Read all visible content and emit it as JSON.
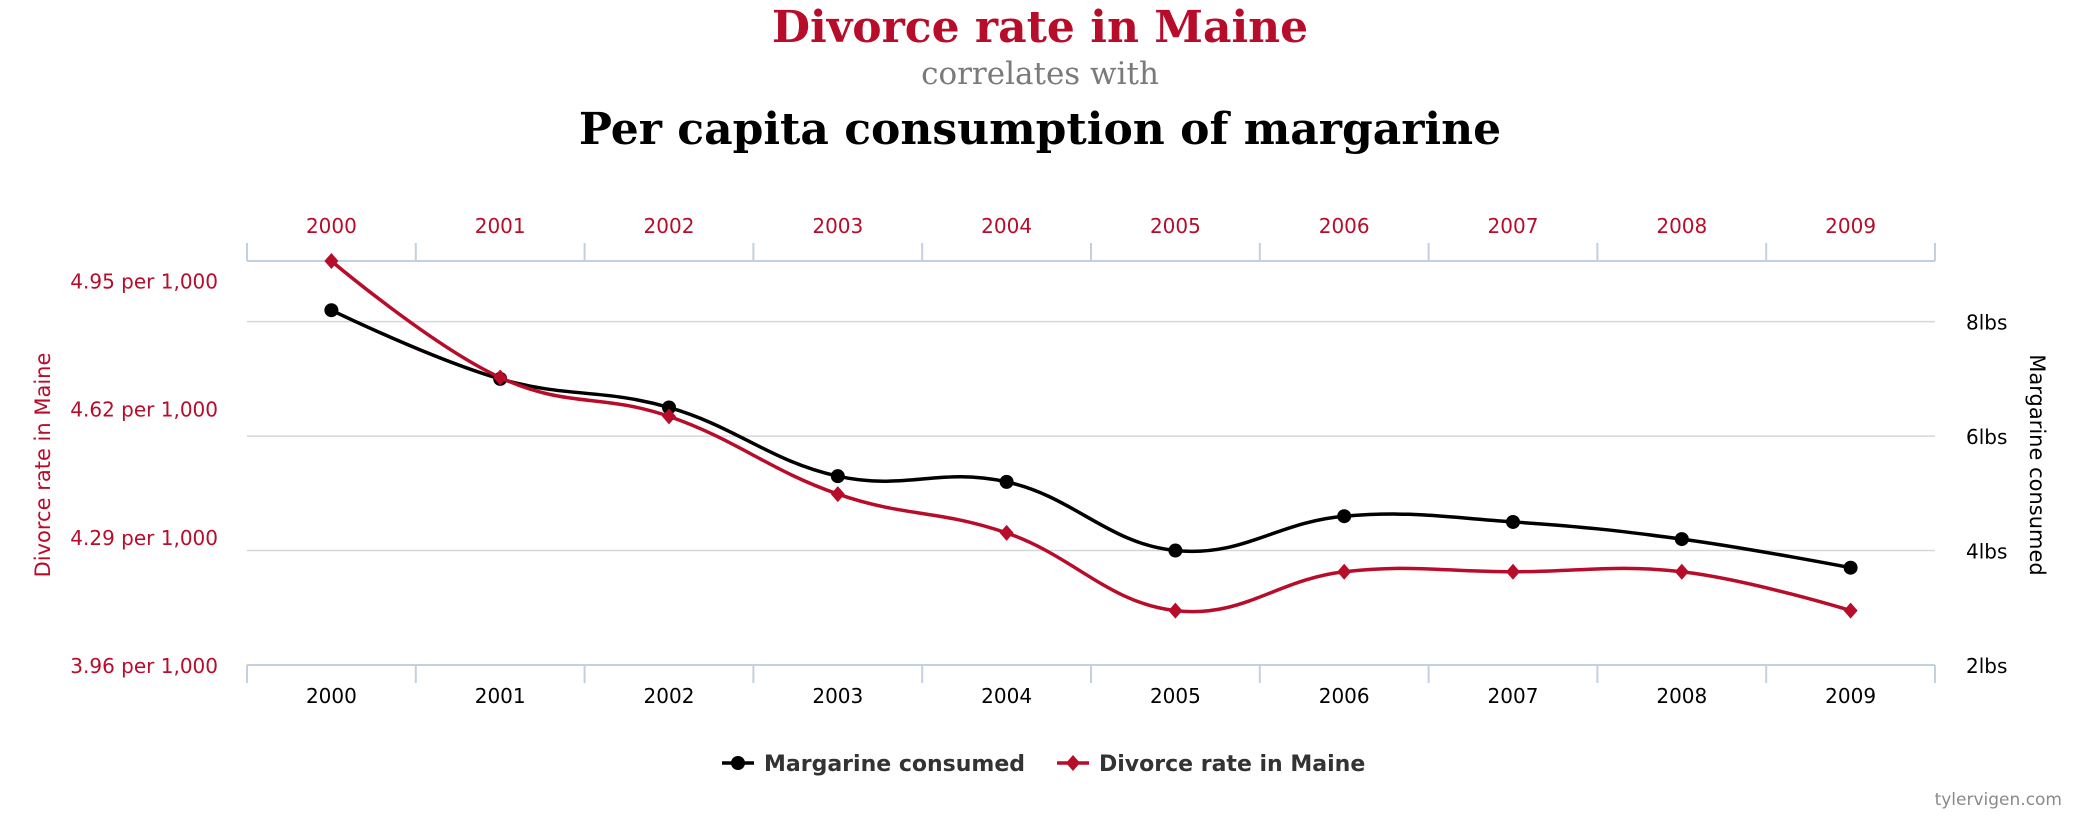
{
  "title": {
    "line1": "Divorce rate in Maine",
    "line2": "correlates with",
    "line3": "Per capita consumption of margarine"
  },
  "watermark": "tylervigen.com",
  "colors": {
    "divorce": "#b80c2b",
    "margarine": "#000000",
    "grid": "#d3d7dc",
    "axis": "#c2d0e0"
  },
  "chart_data": {
    "type": "line",
    "smoothing": "spline",
    "categories": [
      "2000",
      "2001",
      "2002",
      "2003",
      "2004",
      "2005",
      "2006",
      "2007",
      "2008",
      "2009"
    ],
    "series": [
      {
        "name": "Margarine consumed",
        "axis": "right",
        "marker": "circle",
        "color": "#000000",
        "values": [
          8.2,
          7.0,
          6.5,
          5.3,
          5.2,
          4.0,
          4.6,
          4.5,
          4.2,
          3.7
        ]
      },
      {
        "name": "Divorce rate in Maine",
        "axis": "left",
        "marker": "diamond",
        "color": "#b80c2b",
        "values": [
          5.0,
          4.7,
          4.6,
          4.4,
          4.3,
          4.1,
          4.2,
          4.2,
          4.2,
          4.1
        ]
      }
    ],
    "left_axis": {
      "label": "Divorce rate in Maine",
      "ticks": [
        4.95,
        4.62,
        4.29,
        3.96
      ],
      "tick_labels": [
        "4.95 per 1,000",
        "4.62 per 1,000",
        "4.29 per 1,000",
        "3.96 per 1,000"
      ],
      "range": [
        3.96,
        5.0
      ]
    },
    "right_axis": {
      "label": "Margarine consumed",
      "ticks": [
        8,
        6,
        4,
        2
      ],
      "tick_labels": [
        "8lbs",
        "6lbs",
        "4lbs",
        "2lbs"
      ],
      "range": [
        2,
        9.06
      ]
    },
    "grid": true,
    "legend": "bottom-center"
  }
}
